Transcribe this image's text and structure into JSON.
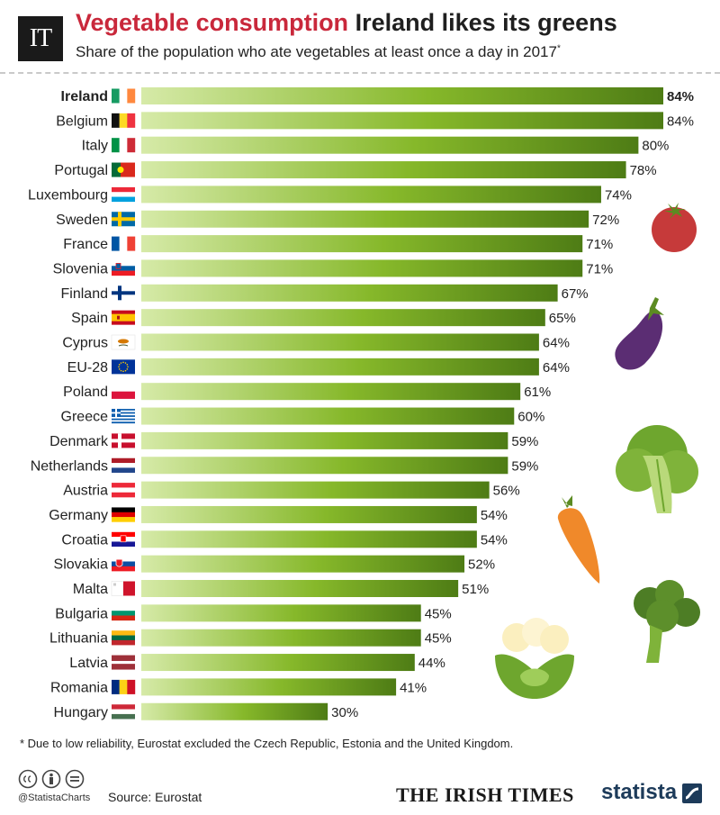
{
  "header": {
    "logo": "IT",
    "title_highlight": "Vegetable consumption",
    "title_rest": "Ireland likes its greens",
    "subtitle": "Share of the population who ate vegetables at least once a day in 2017",
    "subtitle_mark": "*"
  },
  "chart_data": {
    "type": "bar",
    "orientation": "horizontal",
    "categories": [
      "Ireland",
      "Belgium",
      "Italy",
      "Portugal",
      "Luxembourg",
      "Sweden",
      "France",
      "Slovenia",
      "Finland",
      "Spain",
      "Cyprus",
      "EU-28",
      "Poland",
      "Greece",
      "Denmark",
      "Netherlands",
      "Austria",
      "Germany",
      "Croatia",
      "Slovakia",
      "Malta",
      "Bulgaria",
      "Lithuania",
      "Latvia",
      "Romania",
      "Hungary"
    ],
    "values": [
      84,
      84,
      80,
      78,
      74,
      72,
      71,
      71,
      67,
      65,
      64,
      64,
      61,
      60,
      59,
      59,
      56,
      54,
      54,
      52,
      51,
      45,
      45,
      44,
      41,
      30
    ],
    "value_labels": [
      "84%",
      "84%",
      "80%",
      "78%",
      "74%",
      "72%",
      "71%",
      "71%",
      "67%",
      "65%",
      "64%",
      "64%",
      "61%",
      "60%",
      "59%",
      "59%",
      "56%",
      "54%",
      "54%",
      "52%",
      "51%",
      "45%",
      "45%",
      "44%",
      "41%",
      "30%"
    ],
    "highlight": "Ireland",
    "unit": "%",
    "xlim": [
      0,
      84
    ],
    "grid": false,
    "colors": {
      "bar_start": "#d4e9a4",
      "bar_mid": "#7fb31f",
      "bar_end": "#4f7d15"
    },
    "flags": [
      "ireland-flag",
      "belgium-flag",
      "italy-flag",
      "portugal-flag",
      "luxembourg-flag",
      "sweden-flag",
      "france-flag",
      "slovenia-flag",
      "finland-flag",
      "spain-flag",
      "cyprus-flag",
      "eu-flag",
      "poland-flag",
      "greece-flag",
      "denmark-flag",
      "netherlands-flag",
      "austria-flag",
      "germany-flag",
      "croatia-flag",
      "slovakia-flag",
      "malta-flag",
      "bulgaria-flag",
      "lithuania-flag",
      "latvia-flag",
      "romania-flag",
      "hungary-flag"
    ]
  },
  "footer": {
    "footnote": "* Due to low reliability, Eurostat excluded the Czech Republic, Estonia and the United Kingdom.",
    "handle": "@StatistaCharts",
    "source": "Source: Eurostat",
    "publisher": "THE IRISH TIMES",
    "brand": "statista"
  },
  "colors": {
    "accent": "#c9283b",
    "brand": "#1d3b5a"
  },
  "decorations": [
    "tomato-icon",
    "eggplant-icon",
    "lettuce-icon",
    "carrot-icon",
    "broccoli-icon",
    "cauliflower-icon"
  ]
}
